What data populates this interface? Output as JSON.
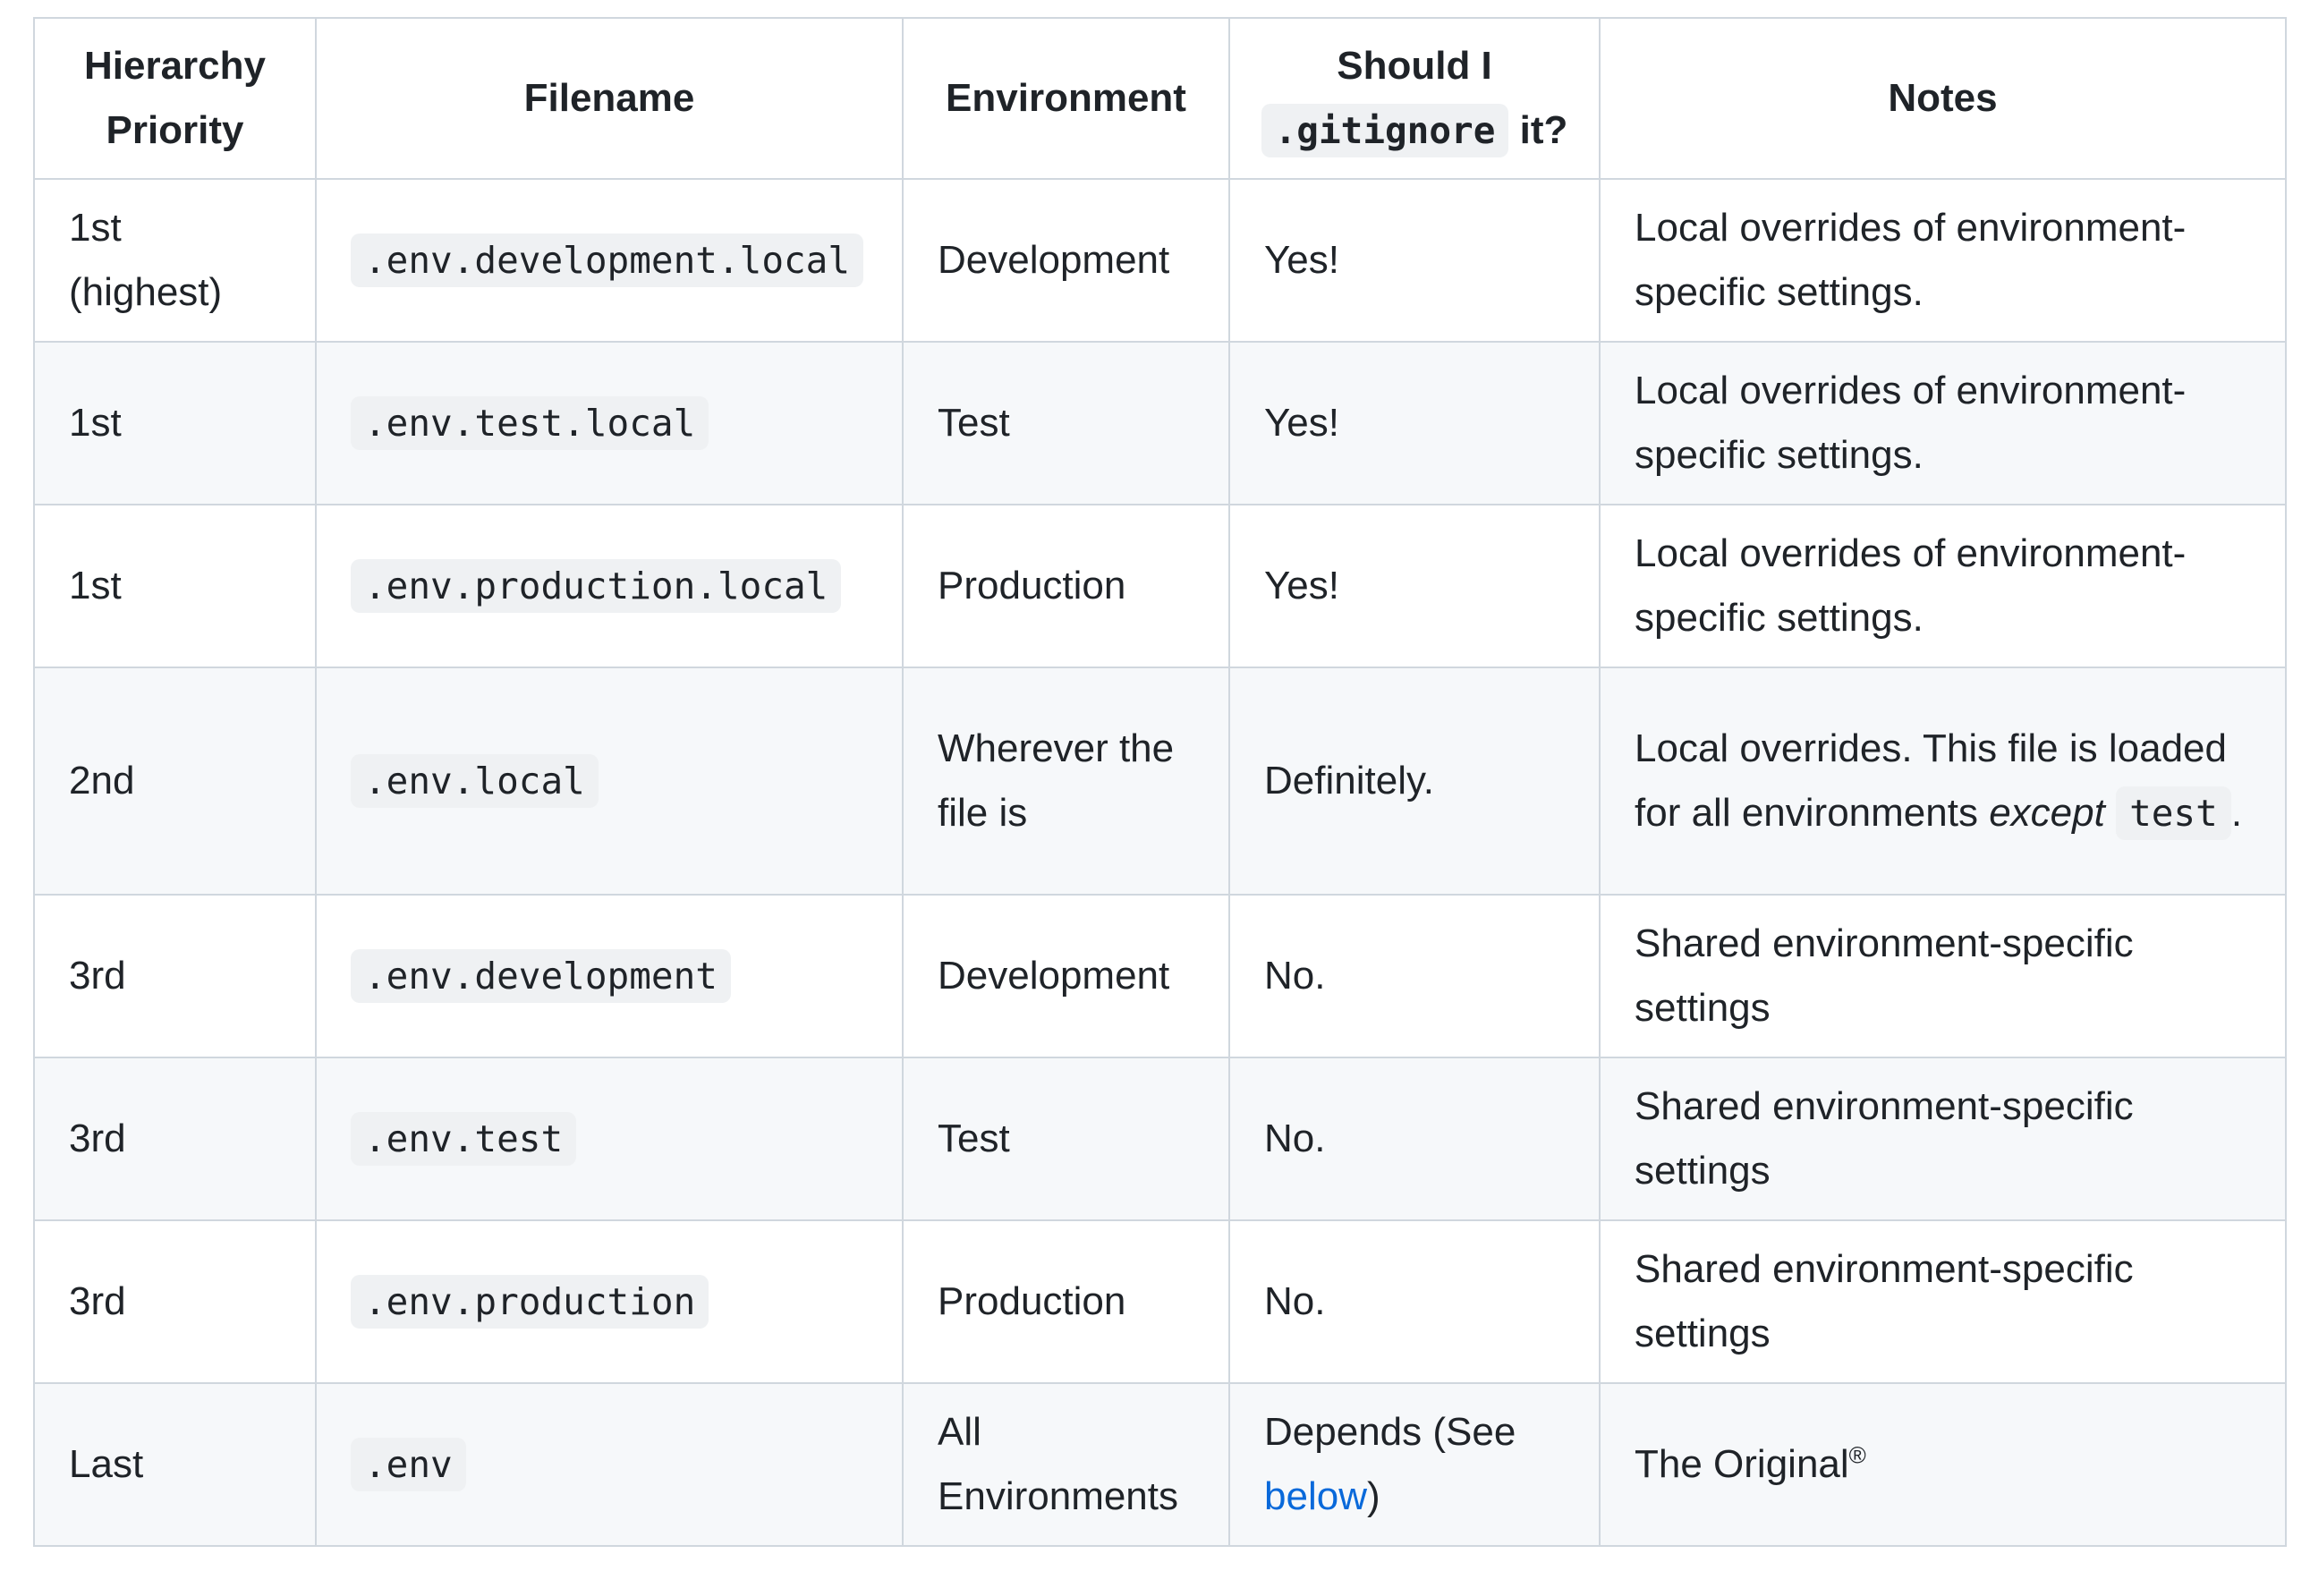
{
  "headers": {
    "priority_line1": "Hierarchy",
    "priority_line2": "Priority",
    "filename": "Filename",
    "environment": "Environment",
    "gitignore_pre": "Should I",
    "gitignore_code": ".gitignore",
    "gitignore_post": "it?",
    "notes": "Notes"
  },
  "rows": [
    {
      "priority": "1st (highest)",
      "filename": ".env.development.local",
      "environment": "Development",
      "gitignore": "Yes!",
      "notes": "Local overrides of environment-specific settings."
    },
    {
      "priority": "1st",
      "filename": ".env.test.local",
      "environment": "Test",
      "gitignore": "Yes!",
      "notes": "Local overrides of environment-specific settings."
    },
    {
      "priority": "1st",
      "filename": ".env.production.local",
      "environment": "Production",
      "gitignore": "Yes!",
      "notes": "Local overrides of environment-specific settings."
    },
    {
      "priority": "2nd",
      "filename": ".env.local",
      "environment": "Wherever the file is",
      "gitignore": "Definitely.",
      "notes_pre": "Local overrides. This file is loaded for all environments",
      "notes_em": "except",
      "notes_code": "test",
      "notes_post": "."
    },
    {
      "priority": "3rd",
      "filename": ".env.development",
      "environment": "Development",
      "gitignore": "No.",
      "notes": "Shared environment-specific settings"
    },
    {
      "priority": "3rd",
      "filename": ".env.test",
      "environment": "Test",
      "gitignore": "No.",
      "notes": "Shared environment-specific settings"
    },
    {
      "priority": "3rd",
      "filename": ".env.production",
      "environment": "Production",
      "gitignore": "No.",
      "notes": "Shared environment-specific settings"
    },
    {
      "priority": "Last",
      "filename": ".env",
      "environment": "All Environments",
      "gitignore_pre": "Depends (See ",
      "gitignore_link": "below",
      "gitignore_post": ")",
      "notes": "The Original",
      "notes_sup": "®"
    }
  ],
  "colors": {
    "border": "#d0d7de",
    "row_alt": "#f6f8fa",
    "code_bg": "#eff1f3",
    "link": "#0969da"
  }
}
